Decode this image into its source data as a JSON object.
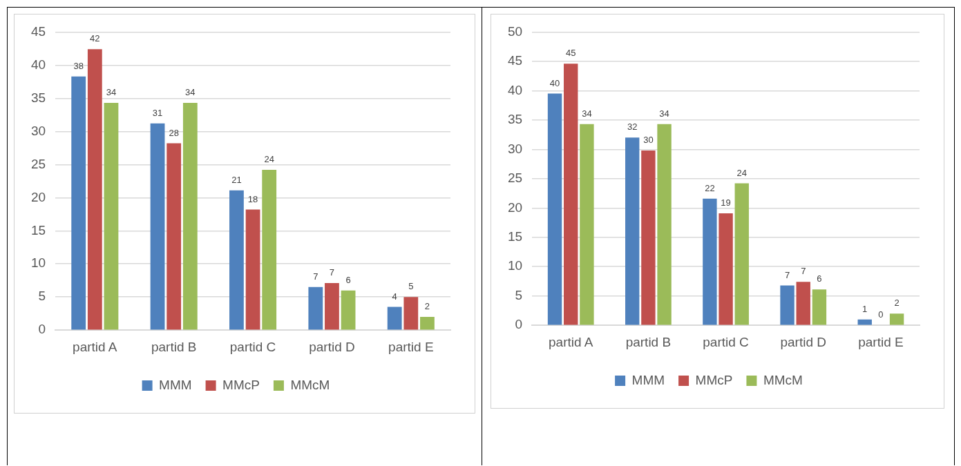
{
  "chart_data": [
    {
      "type": "bar",
      "categories": [
        "partid A",
        "partid B",
        "partid C",
        "partid D",
        "partid E"
      ],
      "series": [
        {
          "name": "MMM",
          "color": "#4f81bd",
          "values": [
            38.3,
            31.2,
            21.1,
            6.5,
            3.5
          ],
          "value_labels": [
            "38",
            "31",
            "21",
            "7",
            "4"
          ]
        },
        {
          "name": "MMcP",
          "color": "#c0504d",
          "values": [
            42.4,
            28.2,
            18.2,
            7.1,
            5.0
          ],
          "value_labels": [
            "42",
            "28",
            "18",
            "7",
            "5"
          ]
        },
        {
          "name": "MMcM",
          "color": "#9bbb59",
          "values": [
            34.3,
            34.3,
            24.2,
            6.0,
            2.0
          ],
          "value_labels": [
            "34",
            "34",
            "24",
            "6",
            "2"
          ]
        }
      ],
      "ylim": [
        0,
        45
      ],
      "yticks": [
        0,
        5,
        10,
        15,
        20,
        25,
        30,
        35,
        40,
        45
      ],
      "grid": "y",
      "legend": "bottom"
    },
    {
      "type": "bar",
      "categories": [
        "partid A",
        "partid B",
        "partid C",
        "partid D",
        "partid E"
      ],
      "series": [
        {
          "name": "MMM",
          "color": "#4f81bd",
          "values": [
            39.5,
            32.0,
            21.6,
            6.8,
            1.0
          ],
          "value_labels": [
            "40",
            "32",
            "22",
            "7",
            "1"
          ]
        },
        {
          "name": "MMcP",
          "color": "#c0504d",
          "values": [
            44.6,
            29.8,
            19.1,
            7.4,
            0
          ],
          "value_labels": [
            "45",
            "30",
            "19",
            "7",
            "0"
          ]
        },
        {
          "name": "MMcM",
          "color": "#9bbb59",
          "values": [
            34.3,
            34.3,
            24.2,
            6.1,
            2.0
          ],
          "value_labels": [
            "34",
            "34",
            "24",
            "6",
            "2"
          ]
        }
      ],
      "ylim": [
        0,
        50
      ],
      "yticks": [
        0,
        5,
        10,
        15,
        20,
        25,
        30,
        35,
        40,
        45,
        50
      ],
      "grid": "y",
      "legend": "bottom"
    }
  ]
}
